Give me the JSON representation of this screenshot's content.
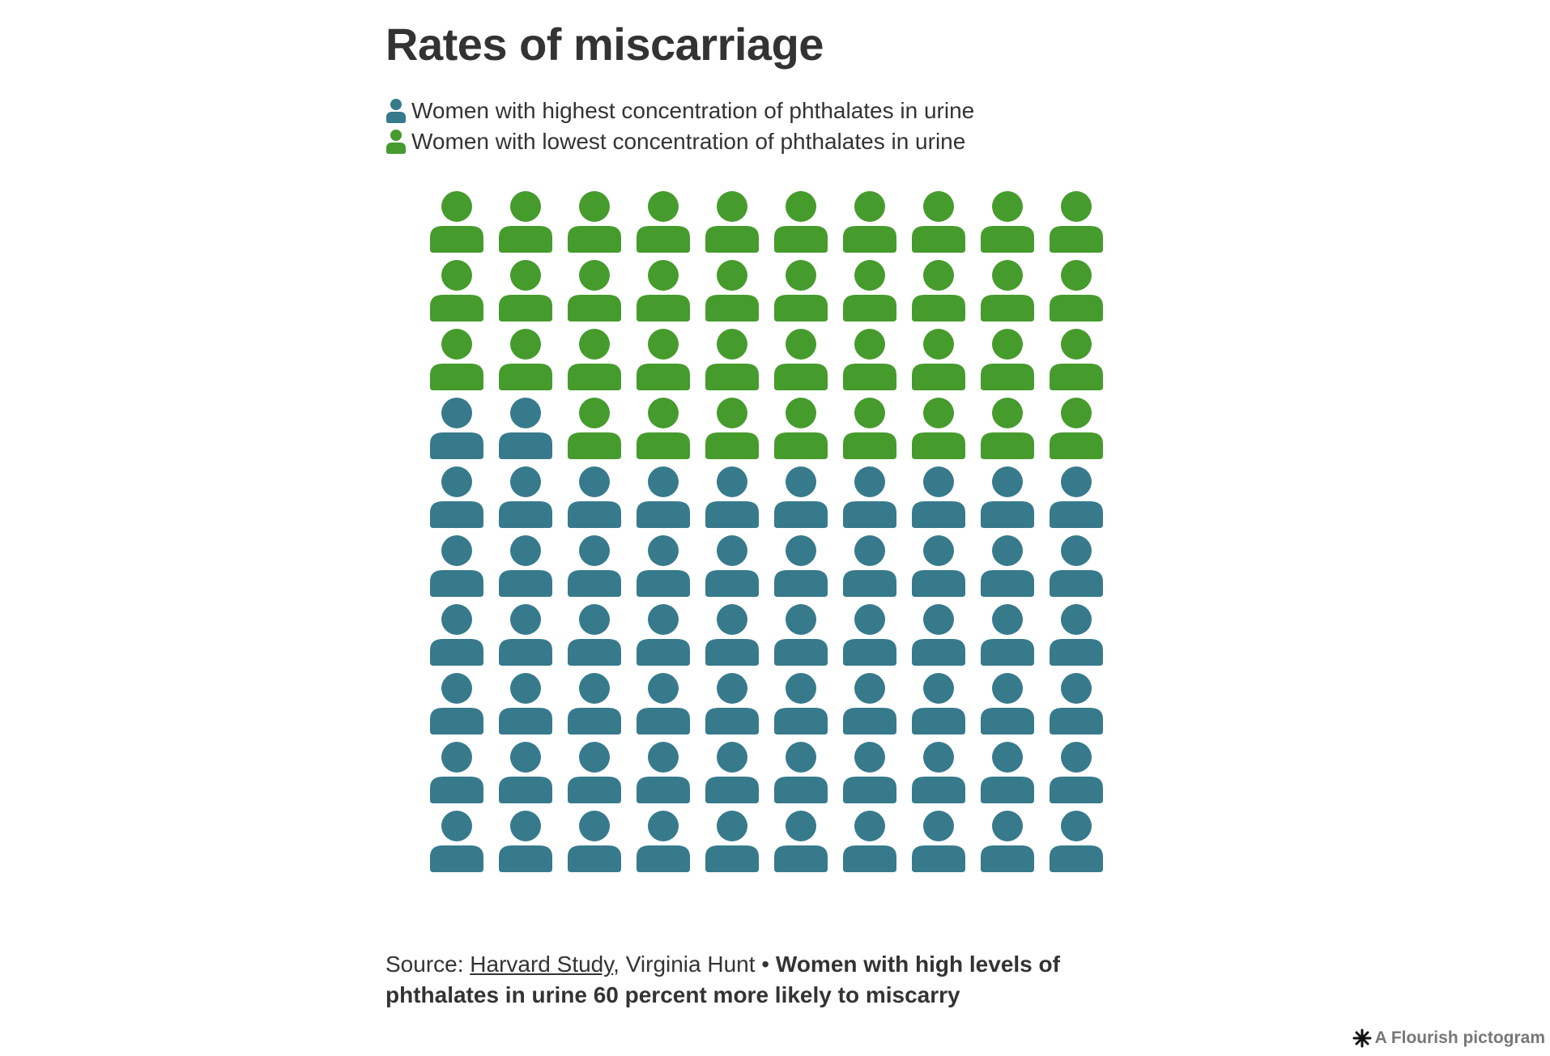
{
  "title": "Rates of miscarriage",
  "legend": [
    {
      "label": "Women with highest concentration of phthalates in urine",
      "color": "#377a8c",
      "icon": "person-icon"
    },
    {
      "label": "Women with lowest concentration of phthalates in urine",
      "color": "#469b2d",
      "icon": "person-icon"
    }
  ],
  "chart_data": {
    "type": "pictogram",
    "title": "Rates of miscarriage",
    "total": 100,
    "columns": 10,
    "rows": 10,
    "fill_order": "bottom-up, left-to-right",
    "series": [
      {
        "name": "Women with highest concentration of phthalates in urine",
        "value": 62,
        "color": "#377a8c"
      },
      {
        "name": "Women with lowest concentration of phthalates in urine",
        "value": 38,
        "color": "#469b2d"
      }
    ]
  },
  "footer": {
    "source_prefix": "Source: ",
    "source_link": "Harvard Study",
    "source_rest": ", Virginia Hunt • ",
    "note": "Women with high levels of phthalates in urine 60 percent more likely to miscarry"
  },
  "credit": {
    "label": "A Flourish pictogram",
    "icon": "flourish-logo-icon"
  }
}
